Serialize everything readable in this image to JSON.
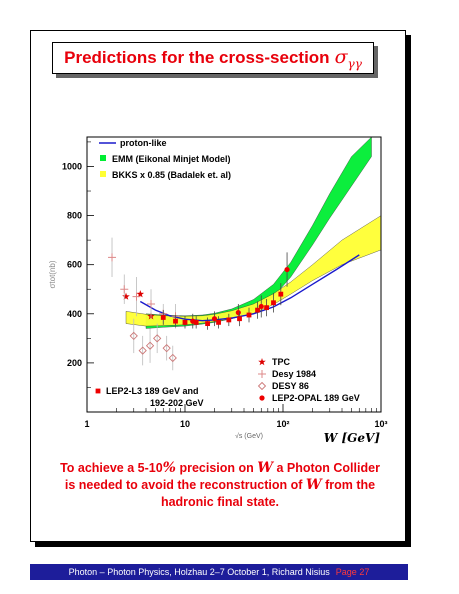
{
  "title": {
    "text": "Predictions for the cross-section",
    "symbol": "σ",
    "subscript": "γγ"
  },
  "chart_data": {
    "type": "scatter",
    "xlabel": "√s (GeV)",
    "xunit": "W [GeV]",
    "ylabel": "σtot(nb)",
    "xscale": "log",
    "xlim": [
      1,
      1000
    ],
    "ylim": [
      0,
      1120
    ],
    "xticks": [
      {
        "v": 1,
        "label": "1"
      },
      {
        "v": 10,
        "label": "10"
      },
      {
        "v": 100,
        "label": "10²"
      },
      {
        "v": 1000,
        "label": "10³"
      }
    ],
    "yticks": [
      200,
      400,
      600,
      800,
      1000
    ],
    "legend_top": [
      {
        "label": "proton-like",
        "color": "#1a1acc",
        "kind": "line"
      },
      {
        "label": "EMM (Eikonal Minjet Model)",
        "color": "#00ee33",
        "kind": "square"
      },
      {
        "label": "BKKS x 0.85 (Badalek et. al)",
        "color": "#ffff33",
        "kind": "square"
      }
    ],
    "legend_bottom_right": [
      {
        "label": "TPC",
        "marker": "star"
      },
      {
        "label": "Desy 1984",
        "marker": "cross"
      },
      {
        "label": "DESY 86",
        "marker": "diamond"
      },
      {
        "label": "LEP2-OPAL 189 GeV",
        "marker": "circle"
      }
    ],
    "legend_bottom_left": {
      "label_line1": "LEP2-L3 189 GeV and",
      "label_line2": "192-202 GeV",
      "marker": "square"
    },
    "series": [
      {
        "name": "proton-like",
        "kind": "line",
        "color": "#1a1acc",
        "x": [
          3.5,
          5,
          7,
          10,
          15,
          20,
          30,
          50,
          80,
          120,
          200,
          350,
          600
        ],
        "y": [
          450,
          415,
          392,
          378,
          372,
          375,
          383,
          400,
          428,
          465,
          520,
          580,
          640
        ]
      },
      {
        "name": "EMM (Eikonal Minjet Model)",
        "kind": "band",
        "color": "#00ee33",
        "x": [
          4,
          6,
          10,
          15,
          20,
          30,
          50,
          80,
          120,
          200,
          300,
          500,
          800
        ],
        "lower": [
          340,
          345,
          350,
          358,
          365,
          380,
          415,
          470,
          550,
          680,
          790,
          920,
          1040
        ],
        "upper": [
          400,
          395,
          392,
          395,
          402,
          420,
          458,
          520,
          610,
          760,
          890,
          1040,
          1180
        ]
      },
      {
        "name": "BKKS x 0.85 (Badalek et. al)",
        "kind": "band",
        "color": "#ffff33",
        "x": [
          2.5,
          4,
          6,
          10,
          15,
          20,
          30,
          50,
          80,
          120,
          200,
          400,
          1000
        ],
        "lower": [
          360,
          350,
          352,
          355,
          362,
          368,
          380,
          402,
          438,
          480,
          535,
          600,
          660
        ],
        "upper": [
          410,
          398,
          392,
          390,
          392,
          398,
          412,
          440,
          482,
          530,
          600,
          700,
          800
        ]
      },
      {
        "name": "TPC",
        "kind": "points",
        "marker": "star",
        "x": [
          2.5,
          3.5,
          4.5
        ],
        "y": [
          470,
          480,
          390
        ]
      },
      {
        "name": "Desy 1984",
        "kind": "points",
        "marker": "cross",
        "x": [
          1.8,
          2.4,
          3.2,
          4.5,
          6,
          8
        ],
        "y": [
          630,
          500,
          470,
          440,
          400,
          390
        ],
        "err": [
          80,
          60,
          80,
          60,
          40,
          50
        ]
      },
      {
        "name": "DESY 86",
        "kind": "points",
        "marker": "diamond",
        "x": [
          3,
          3.7,
          4.4,
          5.2,
          6.5,
          7.5
        ],
        "y": [
          310,
          250,
          270,
          300,
          260,
          220
        ],
        "err": [
          70,
          60,
          70,
          60,
          50,
          50
        ]
      },
      {
        "name": "LEP2-OPAL 189 GeV",
        "kind": "points",
        "marker": "circle",
        "x": [
          12,
          20,
          35,
          60,
          110
        ],
        "y": [
          370,
          380,
          405,
          430,
          580
        ],
        "err": [
          30,
          30,
          35,
          45,
          70
        ]
      },
      {
        "name": "LEP2-L3 189 GeV and 192-202 GeV",
        "kind": "points",
        "marker": "square",
        "x": [
          6,
          8,
          10,
          13,
          17,
          22,
          28,
          36,
          45,
          55,
          68,
          80,
          95
        ],
        "y": [
          385,
          370,
          365,
          365,
          360,
          365,
          375,
          380,
          395,
          415,
          425,
          445,
          480
        ],
        "err": [
          30,
          25,
          25,
          25,
          25,
          25,
          25,
          30,
          30,
          35,
          35,
          40,
          45
        ]
      }
    ]
  },
  "caption": {
    "line1_a": "To achieve a 5-10",
    "line1_pct": "%",
    "line1_b": " precision on ",
    "line1_w": "W",
    "line1_c": " a Photon Collider",
    "line2_a": "is needed to avoid the reconstruction of ",
    "line2_w": "W",
    "line2_b": " from the",
    "line3": "hadronic final state."
  },
  "footer": {
    "text": "Photon – Photon Physics,     Holzhau   2–7 October 1,    Richard Nisius",
    "page": "Page 27"
  },
  "colors": {
    "accent": "#e8000b",
    "footer_bg": "#1d1d9a"
  }
}
